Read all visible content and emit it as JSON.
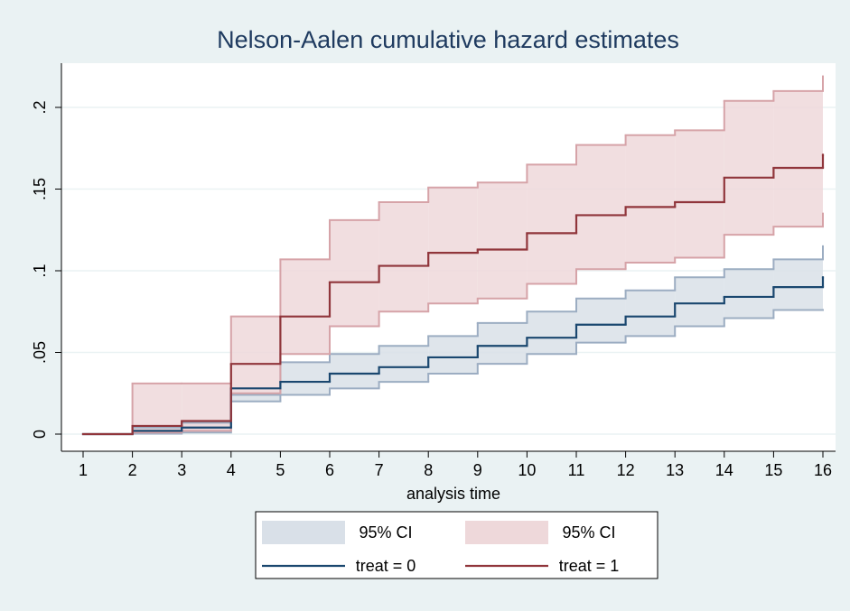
{
  "chart_data": {
    "type": "step-ci",
    "title": "Nelson-Aalen cumulative hazard estimates",
    "xlabel": "analysis time",
    "x": [
      1,
      2,
      3,
      4,
      5,
      6,
      7,
      8,
      9,
      10,
      11,
      12,
      13,
      14,
      15,
      16
    ],
    "xlim": [
      1,
      16
    ],
    "xticks": [
      1,
      2,
      3,
      4,
      5,
      6,
      7,
      8,
      9,
      10,
      11,
      12,
      13,
      14,
      15,
      16
    ],
    "ylim": [
      0,
      0.2
    ],
    "yticks": [
      0,
      {
        "value": 0.05,
        "label": ".05"
      },
      {
        "value": 0.1,
        "label": ".1"
      },
      {
        "value": 0.15,
        "label": ".15"
      },
      {
        "value": 0.2,
        "label": ".2"
      }
    ],
    "grid": true,
    "series": [
      {
        "name": "treat = 0",
        "color": "#1a476f",
        "ci_label": "95% CI",
        "ci_color": "#d9e0e8",
        "ci_edge": "#9cadc2",
        "values": [
          0,
          0.002,
          0.004,
          0.028,
          0.032,
          0.037,
          0.041,
          0.047,
          0.054,
          0.059,
          0.067,
          0.072,
          0.08,
          0.084,
          0.09,
          0.096
        ],
        "lower": [
          0,
          0.0003,
          0.001,
          0.02,
          0.024,
          0.028,
          0.032,
          0.037,
          0.043,
          0.049,
          0.056,
          0.06,
          0.066,
          0.071,
          0.076,
          0.076
        ],
        "upper": [
          0,
          0.004,
          0.007,
          0.024,
          0.044,
          0.049,
          0.054,
          0.06,
          0.068,
          0.075,
          0.083,
          0.088,
          0.096,
          0.101,
          0.107,
          0.115
        ]
      },
      {
        "name": "treat = 1",
        "color": "#90353b",
        "ci_label": "95% CI",
        "ci_color": "#eed8da",
        "ci_edge": "#d6a3a8",
        "values": [
          0,
          0.005,
          0.008,
          0.043,
          0.072,
          0.093,
          0.103,
          0.111,
          0.113,
          0.123,
          0.134,
          0.139,
          0.142,
          0.157,
          0.163,
          0.171
        ],
        "lower": [
          0,
          0.001,
          0.002,
          0.025,
          0.049,
          0.066,
          0.075,
          0.08,
          0.083,
          0.092,
          0.101,
          0.105,
          0.108,
          0.122,
          0.127,
          0.135
        ],
        "upper": [
          0,
          0.031,
          0.031,
          0.072,
          0.107,
          0.131,
          0.142,
          0.151,
          0.154,
          0.165,
          0.177,
          0.183,
          0.186,
          0.204,
          0.21,
          0.219
        ]
      }
    ]
  }
}
